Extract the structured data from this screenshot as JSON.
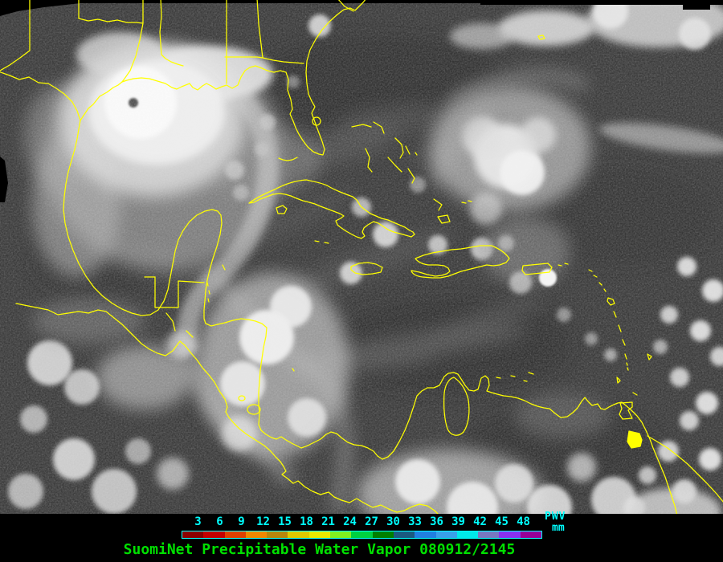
{
  "map": {
    "kind": "geostationary-satellite-image",
    "background_color": "#3C3C3C",
    "coastline_color": "#FFFF00",
    "features": "Gulf of Mexico, Caribbean, hurricane near Texas coast, tropical disturbance north of Hispaniola"
  },
  "colorbar": {
    "unit_top": "PWV",
    "unit_bottom": "mm",
    "tick_color": "#00FFFF",
    "border_color": "#00FFFF",
    "ticks": [
      "3",
      "6",
      "9",
      "12",
      "15",
      "18",
      "21",
      "24",
      "27",
      "30",
      "33",
      "36",
      "39",
      "42",
      "45",
      "48"
    ],
    "segment_colors": [
      "#8B0000",
      "#C40000",
      "#E04000",
      "#F08800",
      "#B8860B",
      "#E0C800",
      "#E8E800",
      "#80F020",
      "#00D040",
      "#008000",
      "#1A5A80",
      "#2080E0",
      "#38A0E8",
      "#00E8E8",
      "#7878C0",
      "#8830F0",
      "#980098"
    ]
  },
  "caption": {
    "text": "SuomiNet Precipitable Water Vapor 080912/2145",
    "color": "#00E000"
  }
}
